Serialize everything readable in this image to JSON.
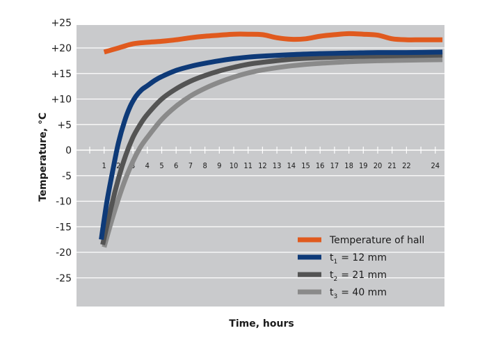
{
  "chart_data": {
    "type": "line",
    "xlabel": "Time, hours",
    "ylabel": "Temperature, °C",
    "xlim": [
      0,
      24.6
    ],
    "ylim": [
      -28,
      26
    ],
    "x_ticks": [
      "1",
      "2",
      "3",
      "4",
      "5",
      "6",
      "7",
      "8",
      "9",
      "10",
      "11",
      "12",
      "13",
      "14",
      "15",
      "16",
      "17",
      "18",
      "19",
      "20",
      "21",
      "22",
      "24"
    ],
    "y_ticks": [
      "+25",
      "+20",
      "+15",
      "+10",
      "+5",
      "0",
      "-5",
      "-10",
      "-15",
      "-20",
      "-25"
    ],
    "y_tick_values": [
      25,
      20,
      15,
      10,
      5,
      0,
      -5,
      -10,
      -15,
      -20,
      -25
    ],
    "grid": true,
    "legend_position": "bottom-right",
    "series": [
      {
        "name": "Temperature of hall",
        "color": "#e05a1e",
        "x": [
          1,
          2,
          3,
          4,
          5,
          6,
          7,
          8,
          9,
          10,
          11,
          12,
          13,
          14,
          15,
          16,
          17,
          18,
          19,
          20,
          21,
          22,
          23,
          24.5
        ],
        "y": [
          19.2,
          20.0,
          20.8,
          21.1,
          21.3,
          21.6,
          22.0,
          22.3,
          22.5,
          22.7,
          22.7,
          22.6,
          22.0,
          21.7,
          21.8,
          22.3,
          22.6,
          22.8,
          22.7,
          22.5,
          21.8,
          21.6,
          21.6,
          21.6
        ]
      },
      {
        "name": "t1 = 12 mm",
        "label_main": "t",
        "label_sub": "1",
        "label_rest": "= 12 mm",
        "color": "#0e3a78",
        "x": [
          0.8,
          1.2,
          1.6,
          2.0,
          2.4,
          2.8,
          3.2,
          3.6,
          4.0,
          4.5,
          5,
          6,
          7,
          8,
          9,
          10,
          11,
          12,
          14,
          16,
          18,
          20,
          22,
          24.5
        ],
        "y": [
          -17.5,
          -10,
          -4,
          1.5,
          5.5,
          8.5,
          10.5,
          11.8,
          12.6,
          13.6,
          14.4,
          15.6,
          16.4,
          17.0,
          17.5,
          17.9,
          18.2,
          18.4,
          18.7,
          18.9,
          19.0,
          19.1,
          19.1,
          19.2
        ]
      },
      {
        "name": "t2 = 21 mm",
        "label_main": "t",
        "label_sub": "2",
        "label_rest": "= 21 mm",
        "color": "#545454",
        "x": [
          0.9,
          1.5,
          2.0,
          2.5,
          3.0,
          3.5,
          4.0,
          5,
          6,
          7,
          8,
          9,
          10,
          11,
          12,
          14,
          16,
          18,
          20,
          22,
          24.5
        ],
        "y": [
          -18.5,
          -11,
          -5.5,
          -1,
          2.5,
          5.0,
          7.0,
          10.0,
          12.0,
          13.5,
          14.6,
          15.5,
          16.2,
          16.8,
          17.2,
          17.8,
          18.1,
          18.3,
          18.4,
          18.5,
          18.6
        ]
      },
      {
        "name": "t3 = 40 mm",
        "label_main": "t",
        "label_sub": "3",
        "label_rest": "= 40 mm",
        "color": "#8a8a8a",
        "x": [
          1.0,
          1.5,
          2.0,
          2.5,
          3.0,
          3.5,
          4.0,
          5,
          6,
          7,
          8,
          9,
          10,
          11,
          12,
          14,
          16,
          18,
          20,
          22,
          24.5
        ],
        "y": [
          -19.0,
          -14,
          -9.5,
          -5.5,
          -2.2,
          0.5,
          2.5,
          6.0,
          8.6,
          10.6,
          12.1,
          13.3,
          14.3,
          15.1,
          15.7,
          16.5,
          17.0,
          17.3,
          17.5,
          17.6,
          17.7
        ]
      }
    ]
  }
}
